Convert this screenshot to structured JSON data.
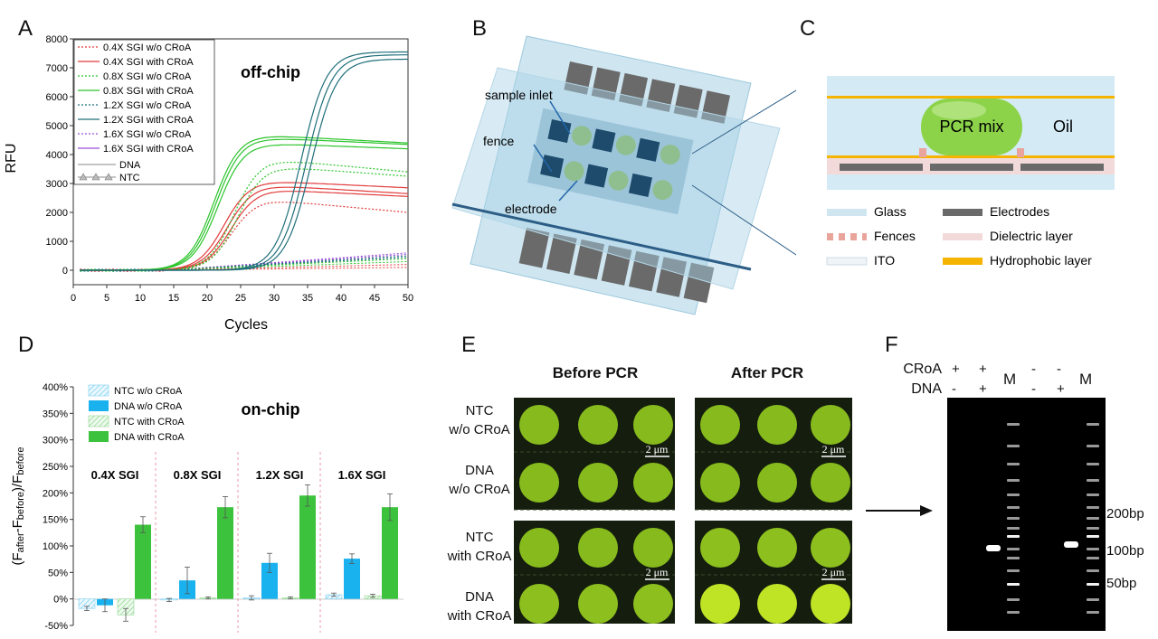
{
  "panels": {
    "a": "A",
    "b": "B",
    "c": "C",
    "d": "D",
    "e": "E",
    "f": "F"
  },
  "colors": {
    "red": "#e23b3b",
    "green": "#2bc42b",
    "teal": "#1f6f7a",
    "purple": "#9b4dd6",
    "bar_blue": "#1ab2ee",
    "bar_green": "#3cc23c",
    "glass": "#cfe6f1",
    "electrode": "#6e6e6e",
    "fence": "#e9a49b",
    "dielectric": "#f3dada",
    "hydrophobic": "#f4b400"
  },
  "chart_a": {
    "chart_data": {
      "type": "line",
      "annotation": "off-chip",
      "xlabel": "Cycles",
      "ylabel": "RFU",
      "xlim": [
        0,
        50
      ],
      "ylim": [
        -500,
        8000
      ],
      "x_ticks": [
        "0",
        "5",
        "10",
        "15",
        "20",
        "25",
        "30",
        "35",
        "40",
        "45",
        "50"
      ],
      "y_ticks": [
        "0",
        "1000",
        "2000",
        "3000",
        "4000",
        "5000",
        "6000",
        "7000",
        "8000"
      ],
      "legend": [
        "0.4X SGI w/o CRoA",
        "0.4X SGI with CRoA",
        "0.8X SGI w/o CRoA",
        "0.8X SGI with CRoA",
        "1.2X SGI w/o CRoA",
        "1.2X SGI with CRoA",
        "1.6X SGI w/o CRoA",
        "1.6X SGI with CRoA"
      ],
      "legend2": [
        "DNA",
        "NTC"
      ],
      "legend_position": "top-left",
      "series": [
        {
          "name": "0.4X SGI w/o CRoA",
          "style": "dotted",
          "color": "red",
          "plateau": 2450,
          "midpoint": 23.5,
          "decline": 450
        },
        {
          "name": "0.4X SGI with CRoA",
          "style": "solid",
          "color": "red",
          "plateau": 3100,
          "midpoint": 22.5,
          "decline": 250
        },
        {
          "name": "0.4X SGI with CRoA",
          "style": "solid",
          "color": "red",
          "plateau": 2950,
          "midpoint": 23.0,
          "decline": 300
        },
        {
          "name": "0.4X SGI with CRoA",
          "style": "solid",
          "color": "red",
          "plateau": 2800,
          "midpoint": 23.5,
          "decline": 250
        },
        {
          "name": "0.8X SGI w/o CRoA",
          "style": "dotted",
          "color": "green",
          "plateau": 3850,
          "midpoint": 24.0,
          "decline": 450
        },
        {
          "name": "0.8X SGI w/o CRoA",
          "style": "dotted",
          "color": "green",
          "plateau": 3600,
          "midpoint": 24.5,
          "decline": 350
        },
        {
          "name": "0.8X SGI with CRoA",
          "style": "solid",
          "color": "green",
          "plateau": 4700,
          "midpoint": 21.0,
          "decline": 300
        },
        {
          "name": "0.8X SGI with CRoA",
          "style": "solid",
          "color": "green",
          "plateau": 4600,
          "midpoint": 21.3,
          "decline": 250
        },
        {
          "name": "0.8X SGI with CRoA",
          "style": "solid",
          "color": "green",
          "plateau": 4400,
          "midpoint": 21.6,
          "decline": 200
        },
        {
          "name": "1.2X SGI with CRoA",
          "style": "solid",
          "color": "teal",
          "plateau": 7550,
          "midpoint": 34.0,
          "decline": 0
        },
        {
          "name": "1.2X SGI with CRoA",
          "style": "solid",
          "color": "teal",
          "plateau": 7450,
          "midpoint": 34.8,
          "decline": 0
        },
        {
          "name": "1.2X SGI with CRoA",
          "style": "solid",
          "color": "teal",
          "plateau": 7300,
          "midpoint": 35.5,
          "decline": 0
        }
      ],
      "ntc_end_values": [
        600,
        550,
        500,
        450,
        400,
        300,
        200,
        100
      ]
    }
  },
  "chart_d": {
    "chart_data": {
      "type": "bar",
      "annotation": "on-chip",
      "ylabel": "(Fafter-Fbefore)/Fbefore",
      "ylabel_parts": [
        "(F",
        "after",
        "-F",
        "before",
        ")/F",
        "before"
      ],
      "ylim": [
        -50,
        400
      ],
      "y_ticks": [
        "-50%",
        "0%",
        "50%",
        "100%",
        "150%",
        "200%",
        "250%",
        "300%",
        "350%",
        "400%"
      ],
      "categories": [
        "0.4X SGI",
        "0.8X SGI",
        "1.2X SGI",
        "1.6X SGI"
      ],
      "legend": [
        "NTC w/o CRoA",
        "DNA w/o CRoA",
        "NTC with CRoA",
        "DNA with CRoA"
      ],
      "series": [
        {
          "name": "NTC w/o CRoA",
          "values": [
            -18,
            -2,
            2,
            8
          ],
          "errors": [
            4,
            3,
            4,
            3
          ]
        },
        {
          "name": "DNA w/o CRoA",
          "values": [
            -12,
            35,
            68,
            76
          ],
          "errors": [
            12,
            25,
            18,
            9
          ]
        },
        {
          "name": "NTC with CRoA",
          "values": [
            -30,
            2,
            2,
            6
          ],
          "errors": [
            12,
            2,
            2,
            3
          ]
        },
        {
          "name": "DNA with CRoA",
          "values": [
            140,
            173,
            195,
            173
          ],
          "errors": [
            15,
            20,
            20,
            25
          ]
        }
      ]
    }
  },
  "panel_b": {
    "labels": [
      "sample inlet",
      "fence",
      "electrode"
    ]
  },
  "panel_c": {
    "droplet": "PCR mix",
    "oil": "Oil",
    "legend": [
      {
        "label": "Glass",
        "swatch": "glass"
      },
      {
        "label": "Electrodes",
        "swatch": "electrode"
      },
      {
        "label": "Fences",
        "swatch": "fence"
      },
      {
        "label": "Dielectric layer",
        "swatch": "dielectric"
      },
      {
        "label": "ITO",
        "swatch": "ito"
      },
      {
        "label": "Hydrophobic layer",
        "swatch": "hydrophobic"
      }
    ]
  },
  "panel_e": {
    "col_headers": [
      "Before PCR",
      "After PCR"
    ],
    "row_labels": [
      [
        "NTC",
        "w/o CRoA"
      ],
      [
        "DNA",
        "w/o CRoA"
      ],
      [
        "NTC",
        "with CRoA"
      ],
      [
        "DNA",
        "with CRoA"
      ]
    ],
    "scale_bar": "2 μm",
    "brightness": {
      "before": [
        0.55,
        0.55,
        0.55,
        0.6
      ],
      "after": [
        0.55,
        0.55,
        0.6,
        1.0
      ]
    }
  },
  "panel_f": {
    "row1_label": "CRoA",
    "row2_label": "DNA",
    "lanes": [
      {
        "croa": "+",
        "dna": "-"
      },
      {
        "croa": "+",
        "dna": "+"
      },
      {
        "marker": "M"
      },
      {
        "croa": "-",
        "dna": "-"
      },
      {
        "croa": "-",
        "dna": "+"
      },
      {
        "marker": "M"
      }
    ],
    "size_labels": [
      "200bp",
      "100bp",
      "50bp"
    ]
  }
}
